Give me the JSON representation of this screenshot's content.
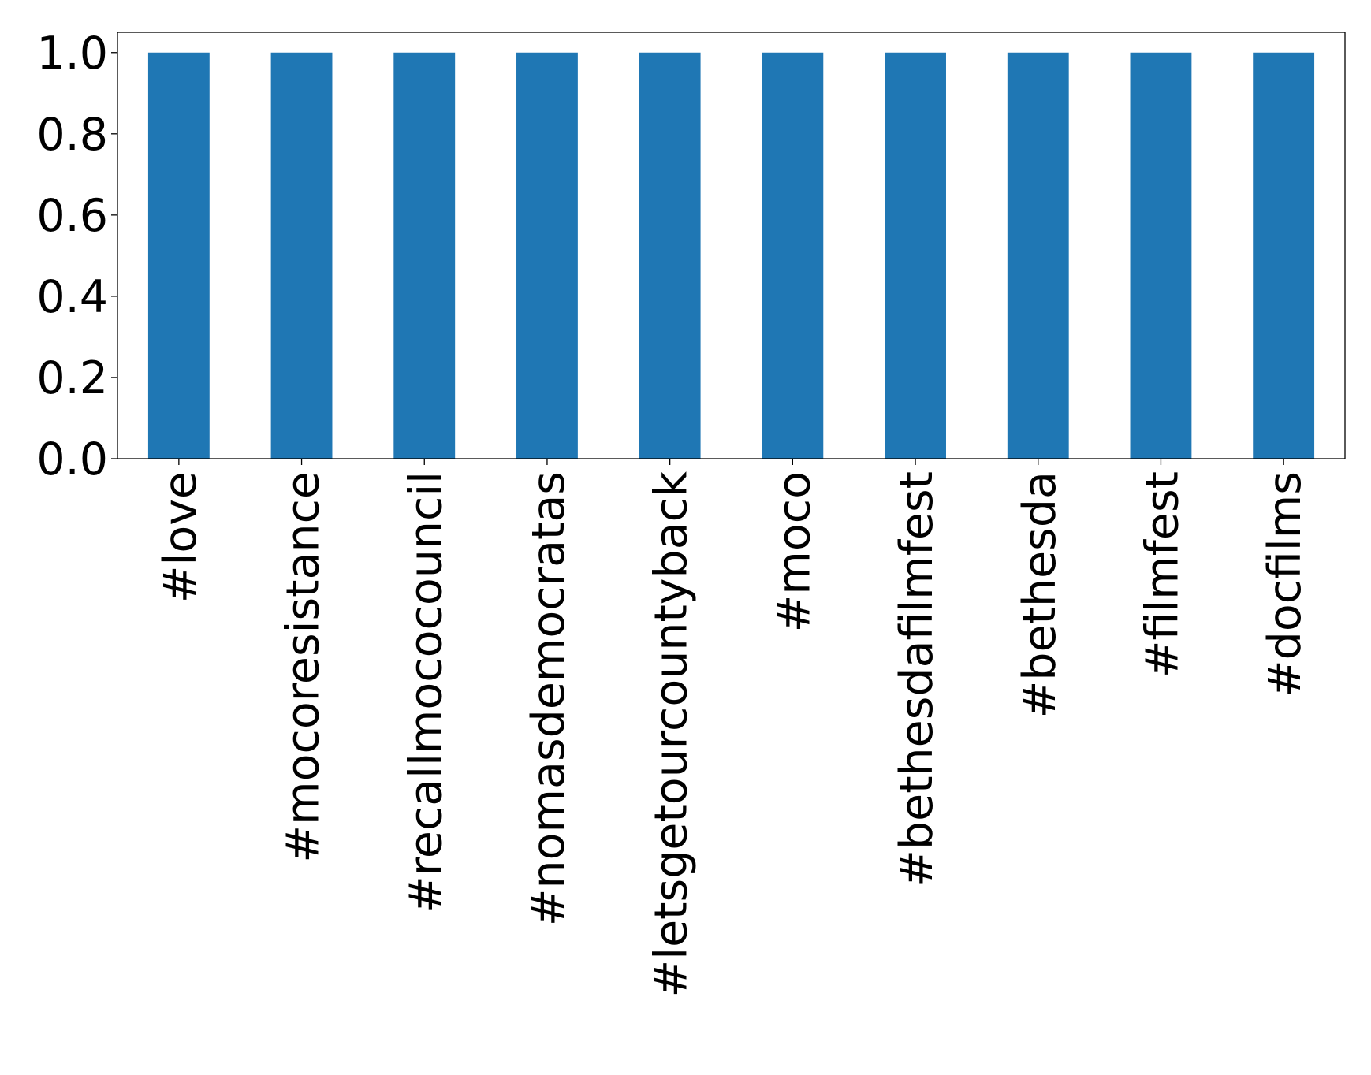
{
  "chart_data": {
    "type": "bar",
    "title": "",
    "xlabel": "",
    "ylabel": "",
    "categories": [
      "#love",
      "#mocoresistance",
      "#recallmococouncil",
      "#nomasdemocratas",
      "#letsgetourcountyback",
      "#moco",
      "#bethesdafilmfest",
      "#bethesda",
      "#filmfest",
      "#docfilms"
    ],
    "values": [
      1.0,
      1.0,
      1.0,
      1.0,
      1.0,
      1.0,
      1.0,
      1.0,
      1.0,
      1.0
    ],
    "ylim": [
      0.0,
      1.05
    ],
    "yticks": [
      0.0,
      0.2,
      0.4,
      0.6,
      0.8,
      1.0
    ],
    "ytick_labels": [
      "0.0",
      "0.2",
      "0.4",
      "0.6",
      "0.8",
      "1.0"
    ],
    "bar_color": "#1f77b4",
    "grid": false,
    "legend": "none",
    "xtick_rotation": "vertical"
  }
}
